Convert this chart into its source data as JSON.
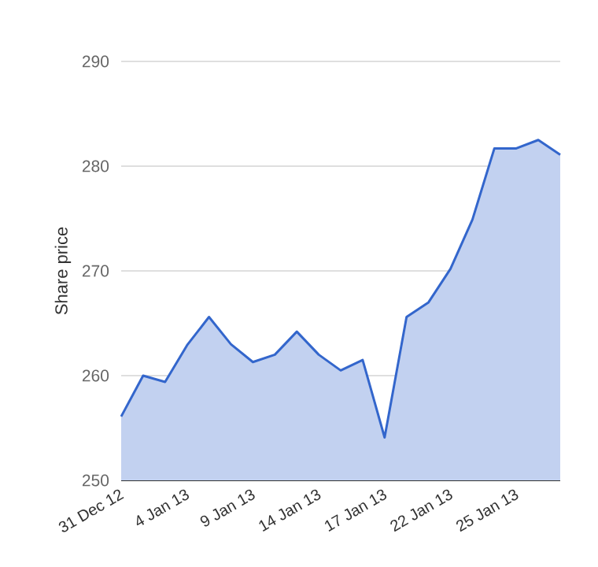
{
  "chart_data": {
    "type": "area",
    "ylabel": "Share price",
    "categories": [
      "31 Dec 12",
      null,
      null,
      "4 Jan 13",
      null,
      null,
      "9 Jan 13",
      null,
      null,
      "14 Jan 13",
      null,
      null,
      "17 Jan 13",
      null,
      null,
      "22 Jan 13",
      null,
      null,
      "25 Jan 13",
      null,
      null
    ],
    "values": [
      256.1,
      260.0,
      259.4,
      262.9,
      265.6,
      263.0,
      261.3,
      262.0,
      264.2,
      262.0,
      260.5,
      261.5,
      254.1,
      265.6,
      267.0,
      270.2,
      274.9,
      281.7,
      281.7,
      282.5,
      281.1
    ],
    "color": "#3366cc",
    "ylim": [
      250,
      290
    ],
    "yticks": [
      250,
      260,
      270,
      280,
      290
    ],
    "grid": "y"
  }
}
